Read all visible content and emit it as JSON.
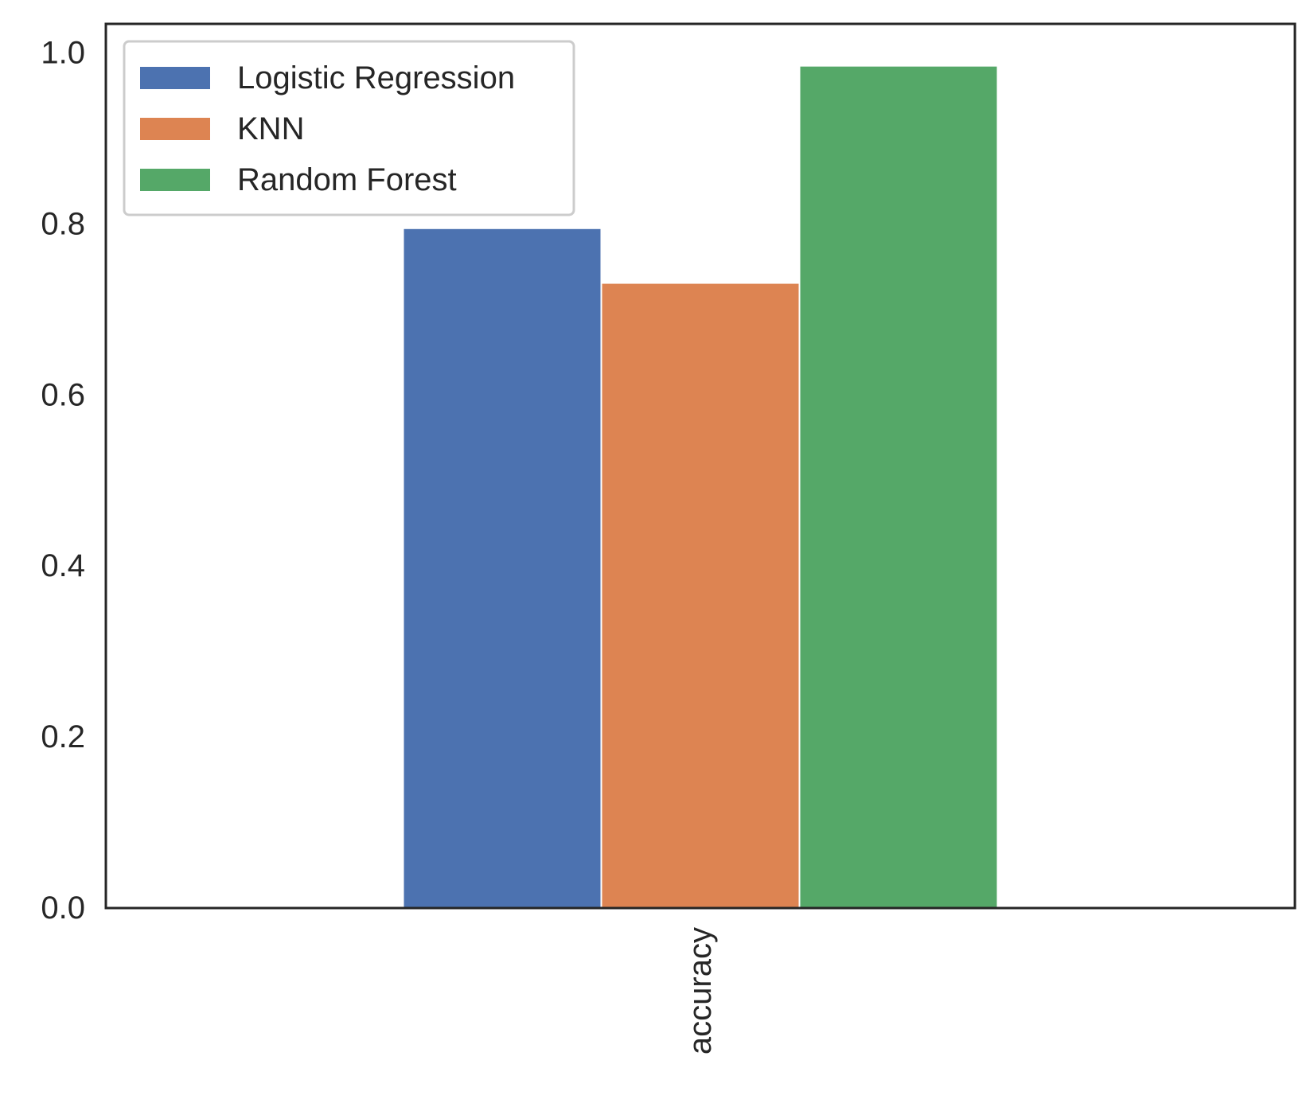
{
  "chart_data": {
    "type": "bar",
    "categories": [
      "accuracy"
    ],
    "series": [
      {
        "name": "Logistic Regression",
        "values": [
          0.795
        ],
        "color": "#4c72b0"
      },
      {
        "name": "KNN",
        "values": [
          0.731
        ],
        "color": "#dd8452"
      },
      {
        "name": "Random Forest",
        "values": [
          0.985
        ],
        "color": "#55a868"
      }
    ],
    "yticks": [
      "0.0",
      "0.2",
      "0.4",
      "0.6",
      "0.8",
      "1.0"
    ],
    "ylim": [
      0,
      1.034
    ],
    "xlabel": "",
    "ylabel": "",
    "grid": false,
    "legend_position": "top-left",
    "xtick_rotation": "vertical"
  }
}
